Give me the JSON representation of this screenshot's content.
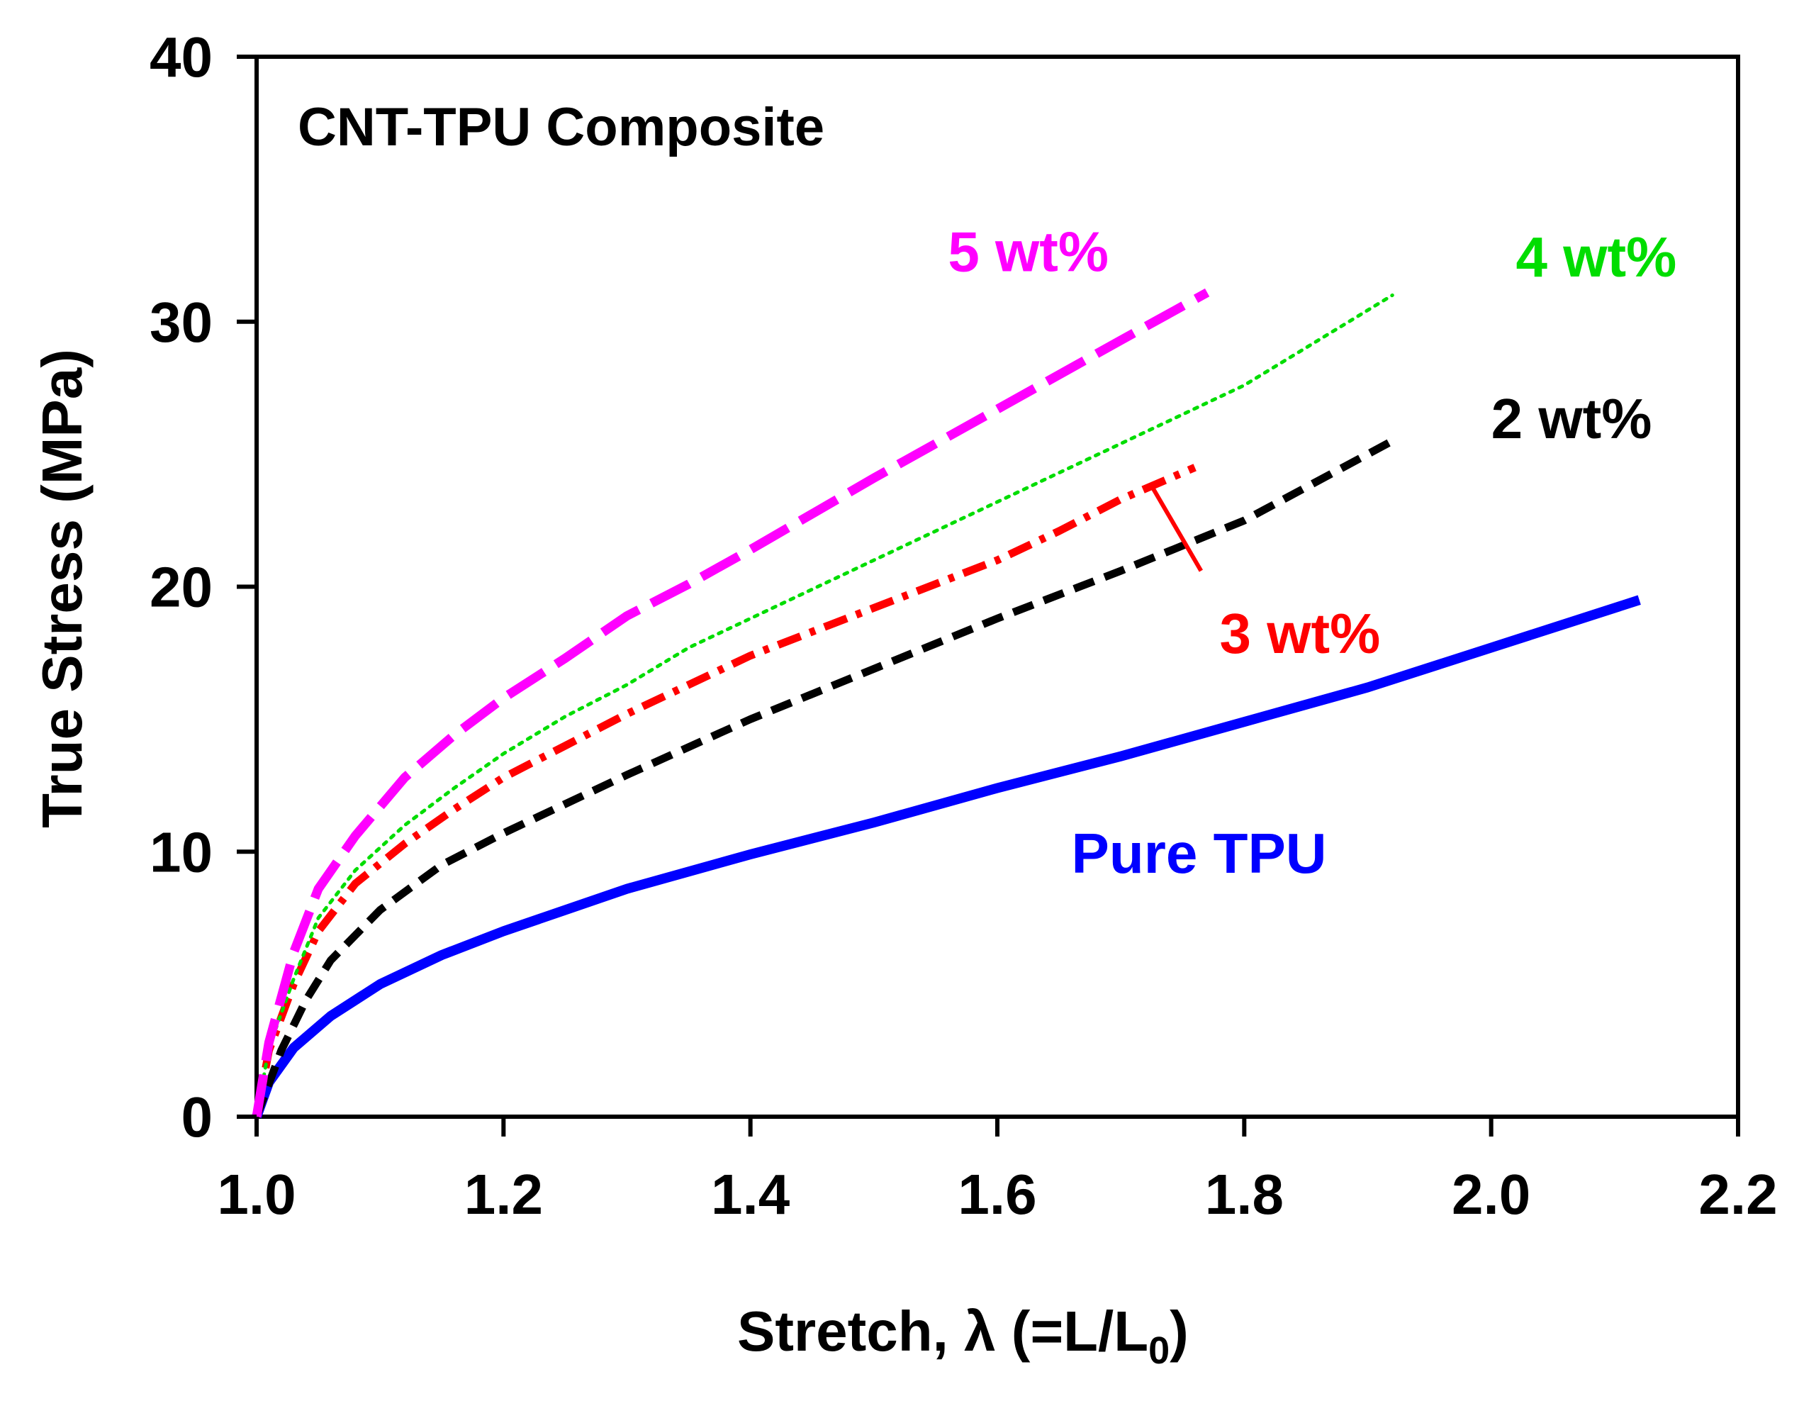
{
  "chart_data": {
    "type": "line",
    "title": "CNT-TPU Composite",
    "xlabel_main": "Stretch, λ (=L/L",
    "xlabel_sub": "0",
    "xlabel_close": ")",
    "ylabel": "True Stress (MPa)",
    "xlim": [
      1.0,
      2.2
    ],
    "ylim": [
      0,
      40
    ],
    "xticks": [
      "1.0",
      "1.2",
      "1.4",
      "1.6",
      "1.8",
      "2.0",
      "2.2"
    ],
    "xtick_values": [
      1.0,
      1.2,
      1.4,
      1.6,
      1.8,
      2.0,
      2.2
    ],
    "yticks": [
      "0",
      "10",
      "20",
      "30",
      "40"
    ],
    "ytick_values": [
      0,
      10,
      20,
      30,
      40
    ],
    "grid": false,
    "series": [
      {
        "name": "Pure TPU",
        "color": "#0000ff",
        "style": "solid",
        "x": [
          1.0,
          1.01,
          1.03,
          1.06,
          1.1,
          1.15,
          1.2,
          1.25,
          1.3,
          1.4,
          1.5,
          1.6,
          1.7,
          1.8,
          1.9,
          2.0,
          2.12
        ],
        "y": [
          0,
          1.3,
          2.6,
          3.8,
          5.0,
          6.1,
          7.0,
          7.8,
          8.6,
          9.9,
          11.1,
          12.4,
          13.6,
          14.9,
          16.2,
          17.7,
          19.5
        ]
      },
      {
        "name": "2 wt%",
        "color": "#000000",
        "style": "dashed",
        "x": [
          1.0,
          1.02,
          1.04,
          1.06,
          1.1,
          1.15,
          1.2,
          1.25,
          1.3,
          1.4,
          1.5,
          1.6,
          1.7,
          1.8,
          1.92
        ],
        "y": [
          0,
          2.5,
          4.4,
          5.9,
          7.8,
          9.5,
          10.7,
          11.8,
          12.9,
          15.0,
          16.9,
          18.8,
          20.6,
          22.5,
          25.5
        ]
      },
      {
        "name": "3 wt%",
        "color": "#ff0000",
        "style": "dashdot",
        "x": [
          1.0,
          1.01,
          1.03,
          1.05,
          1.08,
          1.12,
          1.16,
          1.2,
          1.25,
          1.3,
          1.35,
          1.4,
          1.5,
          1.6,
          1.65,
          1.7,
          1.76
        ],
        "y": [
          0,
          2.5,
          5.0,
          7.0,
          8.8,
          10.3,
          11.6,
          12.8,
          14.0,
          15.2,
          16.3,
          17.4,
          19.2,
          21.0,
          22.1,
          23.3,
          24.5
        ]
      },
      {
        "name": "4 wt%",
        "color": "#00dd00",
        "style": "dotted",
        "x": [
          1.0,
          1.01,
          1.03,
          1.05,
          1.08,
          1.12,
          1.16,
          1.2,
          1.25,
          1.3,
          1.35,
          1.4,
          1.5,
          1.6,
          1.7,
          1.8,
          1.92
        ],
        "y": [
          0,
          2.6,
          5.2,
          7.5,
          9.3,
          11.0,
          12.4,
          13.7,
          15.1,
          16.3,
          17.7,
          18.8,
          21.0,
          23.2,
          25.4,
          27.6,
          31.0
        ]
      },
      {
        "name": "5 wt%",
        "color": "#ff00ff",
        "style": "longdash",
        "x": [
          1.0,
          1.01,
          1.03,
          1.05,
          1.08,
          1.12,
          1.16,
          1.2,
          1.25,
          1.3,
          1.35,
          1.4,
          1.5,
          1.6,
          1.7,
          1.77
        ],
        "y": [
          0,
          2.8,
          6.2,
          8.6,
          10.6,
          12.8,
          14.4,
          15.8,
          17.3,
          18.9,
          20.1,
          21.4,
          24.1,
          26.7,
          29.3,
          31.1
        ]
      }
    ],
    "annotations": [
      {
        "text": "Pure TPU",
        "color": "#0000ff",
        "x": 1.66,
        "y": 9.2
      },
      {
        "text": "2 wt%",
        "color": "#000000",
        "x": 2.0,
        "y": 25.6
      },
      {
        "text": "3 wt%",
        "color": "#ff0000",
        "x": 1.78,
        "y": 17.5
      },
      {
        "text": "4 wt%",
        "color": "#00dd00",
        "x": 2.02,
        "y": 31.7
      },
      {
        "text": "5 wt%",
        "color": "#ff00ff",
        "x": 1.56,
        "y": 31.9
      }
    ],
    "pointer": {
      "from": [
        1.725,
        23.8
      ],
      "to": [
        1.765,
        20.6
      ],
      "color": "#ff0000"
    }
  }
}
